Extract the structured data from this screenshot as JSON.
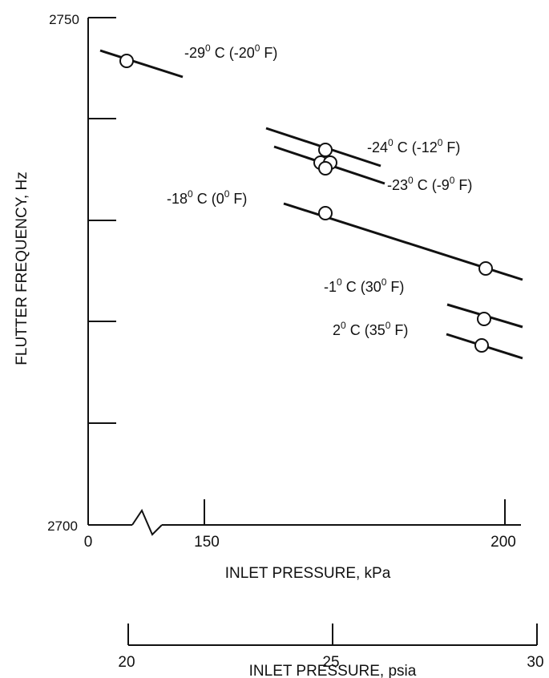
{
  "chart_data": {
    "type": "line",
    "title": "",
    "ylabel": "FLUTTER FREQUENCY, Hz",
    "xlabel": "INLET PRESSURE, kPa",
    "x2label": "INLET PRESSURE, psia",
    "ylim": [
      2700,
      2750
    ],
    "y_tick_labels": [
      "2750",
      "2700"
    ],
    "x_tick_labels": [
      "0",
      "150",
      "200"
    ],
    "x2_tick_labels": [
      "20",
      "25",
      "30"
    ],
    "axis_break": "zigzag between 0 and 150 kPa",
    "grid": false,
    "series": [
      {
        "name": "-29° C (-20° F)",
        "points": [
          {
            "x": 113,
            "y": 2746.7
          }
        ]
      },
      {
        "name": "-24° C (-12° F)",
        "points": [
          {
            "x": 173,
            "y": 2737.3
          }
        ]
      },
      {
        "name": "-23° C (-9° F)",
        "points": [
          {
            "x": 173,
            "y": 2735.8
          }
        ]
      },
      {
        "name": "-18° C (0° F)",
        "points": [
          {
            "x": 173,
            "y": 2734.6
          },
          {
            "x": 198,
            "y": 2731.4
          }
        ]
      },
      {
        "name": "-1° C (30° F)",
        "points": [
          {
            "x": 198,
            "y": 2725.1
          }
        ]
      },
      {
        "name": "2° C (35° F)",
        "points": [
          {
            "x": 198,
            "y": 2721.9
          }
        ]
      }
    ]
  },
  "labels": {
    "s1": {
      "a": "-29",
      "b": "0",
      "c": " C (-20",
      "d": "0",
      "e": " F)"
    },
    "s2": {
      "a": "-24",
      "b": "0",
      "c": " C (-12",
      "d": "0",
      "e": " F)"
    },
    "s3": {
      "a": "-23",
      "b": "0",
      "c": " C (-9",
      "d": "0",
      "e": " F)"
    },
    "s4": {
      "a": "-18",
      "b": "0",
      "c": " C (0",
      "d": "0",
      "e": " F)"
    },
    "s5": {
      "a": "-1",
      "b": "0",
      "c": " C (30",
      "d": "0",
      "e": " F)"
    },
    "s6": {
      "a": "2",
      "b": "0",
      "c": " C (35",
      "d": "0",
      "e": " F)"
    }
  }
}
